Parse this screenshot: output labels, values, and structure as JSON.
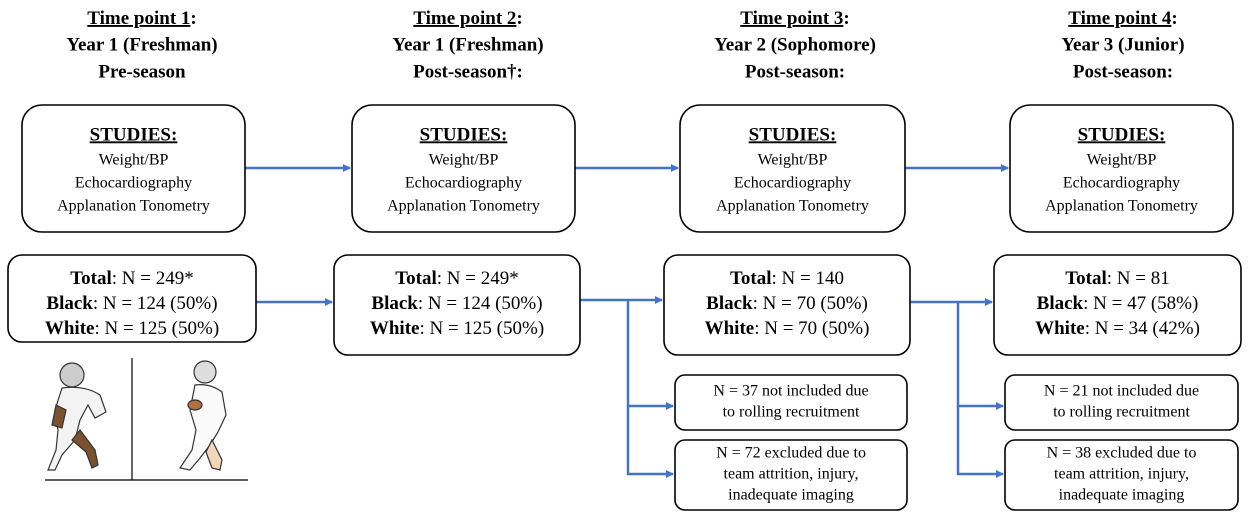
{
  "timepoints": [
    {
      "heading": {
        "label": "Time point 1",
        "suffix": ":",
        "lines": [
          "Year 1 (Freshman)",
          "Pre-season"
        ]
      },
      "studies": {
        "title": "STUDIES:",
        "items": [
          "Weight/BP",
          "Echocardiography",
          "Applanation Tonometry"
        ]
      },
      "counts": [
        {
          "label": "Total",
          "text": ": N = 249*"
        },
        {
          "label": "Black",
          "text": ": N = 124 (50%)"
        },
        {
          "label": "White",
          "text": ": N = 125 (50%)"
        }
      ],
      "exclusions": []
    },
    {
      "heading": {
        "label": "Time point 2",
        "suffix": ":",
        "lines": [
          "Year 1 (Freshman)",
          "Post-season†:"
        ]
      },
      "studies": {
        "title": "STUDIES:",
        "items": [
          "Weight/BP",
          "Echocardiography",
          "Applanation Tonometry"
        ]
      },
      "counts": [
        {
          "label": "Total",
          "text": ": N = 249*"
        },
        {
          "label": "Black",
          "text": ": N = 124 (50%)"
        },
        {
          "label": "White",
          "text": ": N = 125 (50%)"
        }
      ],
      "exclusions": []
    },
    {
      "heading": {
        "label": "Time point 3",
        "suffix": ":",
        "lines": [
          "Year 2 (Sophomore)",
          "Post-season:"
        ]
      },
      "studies": {
        "title": "STUDIES:",
        "items": [
          "Weight/BP",
          "Echocardiography",
          "Applanation Tonometry"
        ]
      },
      "counts": [
        {
          "label": "Total",
          "text": ": N = 140"
        },
        {
          "label": "Black",
          "text": ": N = 70 (50%)"
        },
        {
          "label": "White",
          "text": ": N = 70 (50%)"
        }
      ],
      "exclusions": [
        {
          "lines": [
            "N = 37 not included due",
            "to rolling recruitment"
          ]
        },
        {
          "lines": [
            "N = 72 excluded due to",
            "team attrition, injury,",
            "inadequate imaging"
          ]
        }
      ]
    },
    {
      "heading": {
        "label": "Time point 4",
        "suffix": ":",
        "lines": [
          "Year 3 (Junior)",
          "Post-season:"
        ]
      },
      "studies": {
        "title": "STUDIES:",
        "items": [
          "Weight/BP",
          "Echocardiography",
          "Applanation Tonometry"
        ]
      },
      "counts": [
        {
          "label": "Total",
          "text": ": N = 81"
        },
        {
          "label": "Black",
          "text": ": N = 47 (58%)"
        },
        {
          "label": "White",
          "text": ": N = 34 (42%)"
        }
      ],
      "exclusions": [
        {
          "lines": [
            "N = 21 not included due",
            "to rolling recruitment"
          ]
        },
        {
          "lines": [
            "N = 38 excluded due to",
            "team attrition, injury,",
            "inadequate imaging"
          ]
        }
      ]
    }
  ]
}
